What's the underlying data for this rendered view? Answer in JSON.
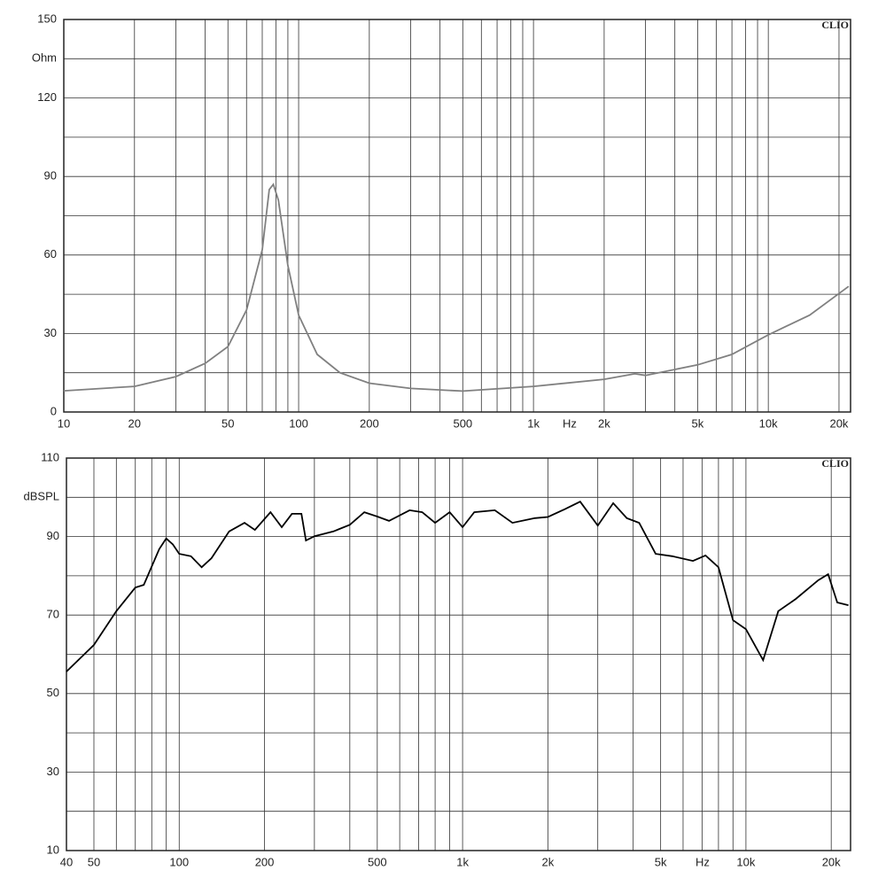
{
  "chart_data": [
    {
      "type": "line",
      "brand": "CLIO",
      "x_label": "Hz",
      "y_label": "Ohm",
      "color": "#808080",
      "log_x": true,
      "grid": true,
      "x": [
        10,
        20,
        30,
        40,
        50,
        60,
        70,
        75,
        78,
        82,
        90,
        100,
        120,
        150,
        200,
        300,
        500,
        1000,
        2000,
        2700,
        3000,
        5000,
        7000,
        10000,
        15000,
        22000
      ],
      "values": [
        8.1,
        9.8,
        13.5,
        18.6,
        25,
        39,
        62,
        85,
        87,
        81,
        56,
        37,
        22,
        15,
        11,
        9,
        8,
        9.8,
        12.5,
        14.6,
        14,
        18,
        22,
        29.5,
        37,
        48
      ],
      "xlim": [
        10,
        22400
      ],
      "ylim": [
        0,
        150
      ],
      "xticks": [
        10,
        20,
        50,
        100,
        200,
        500,
        {
          "value": 1000,
          "label": "1k"
        },
        {
          "value": 2000,
          "label": "2k"
        },
        {
          "value": 5000,
          "label": "5k"
        },
        {
          "value": 10000,
          "label": "10k"
        },
        {
          "value": 20000,
          "label": "20k"
        }
      ],
      "minor_xticks": [
        30,
        40,
        60,
        70,
        80,
        90,
        300,
        400,
        600,
        700,
        800,
        900,
        3000,
        4000,
        6000,
        7000,
        8000,
        9000
      ],
      "yticks": [
        0,
        30,
        60,
        90,
        120,
        150
      ],
      "minor_yticks": [
        15,
        45,
        75,
        105,
        135
      ]
    },
    {
      "type": "line",
      "brand": "CLIO",
      "x_label": "Hz",
      "y_label": "dBSPL",
      "color": "#000000",
      "log_x": true,
      "grid": true,
      "x": [
        40,
        50,
        60,
        70,
        75,
        85,
        90,
        95,
        100,
        110,
        120,
        130,
        150,
        170,
        185,
        210,
        230,
        250,
        270,
        280,
        300,
        350,
        400,
        450,
        500,
        550,
        650,
        720,
        800,
        900,
        1000,
        1100,
        1300,
        1500,
        1800,
        2000,
        2300,
        2600,
        3000,
        3400,
        3800,
        4200,
        4800,
        5500,
        6500,
        7200,
        8000,
        9000,
        10000,
        11500,
        13000,
        15000,
        18000,
        19500,
        21000,
        23000
      ],
      "values": [
        55.6,
        62.4,
        71,
        77,
        77.7,
        86.8,
        89.5,
        88,
        85.6,
        85,
        82.2,
        84.5,
        91.3,
        93.5,
        91.7,
        96.2,
        92.4,
        95.8,
        95.8,
        89,
        90.1,
        91.3,
        93,
        96.2,
        95.1,
        94,
        96.7,
        96.2,
        93.5,
        96.2,
        92.4,
        96.2,
        96.7,
        93.5,
        94.7,
        95,
        97,
        98.9,
        92.8,
        98.5,
        94.7,
        93.5,
        85.6,
        85,
        83.8,
        85.2,
        82.2,
        68.7,
        66.4,
        58.5,
        71,
        74.1,
        78.9,
        80.4,
        73.2,
        72.5
      ],
      "xlim": [
        40,
        23400
      ],
      "ylim": [
        10,
        110
      ],
      "xticks": [
        40,
        50,
        100,
        200,
        500,
        {
          "value": 1000,
          "label": "1k"
        },
        {
          "value": 2000,
          "label": "2k"
        },
        {
          "value": 5000,
          "label": "5k"
        },
        {
          "value": 10000,
          "label": "10k"
        },
        {
          "value": 20000,
          "label": "20k"
        }
      ],
      "minor_xticks": [
        60,
        70,
        80,
        90,
        300,
        400,
        600,
        700,
        800,
        900,
        3000,
        4000,
        6000,
        7000,
        8000,
        9000
      ],
      "yticks": [
        10,
        30,
        50,
        70,
        90,
        110
      ],
      "minor_yticks": [
        20,
        40,
        60,
        80,
        100
      ]
    }
  ]
}
